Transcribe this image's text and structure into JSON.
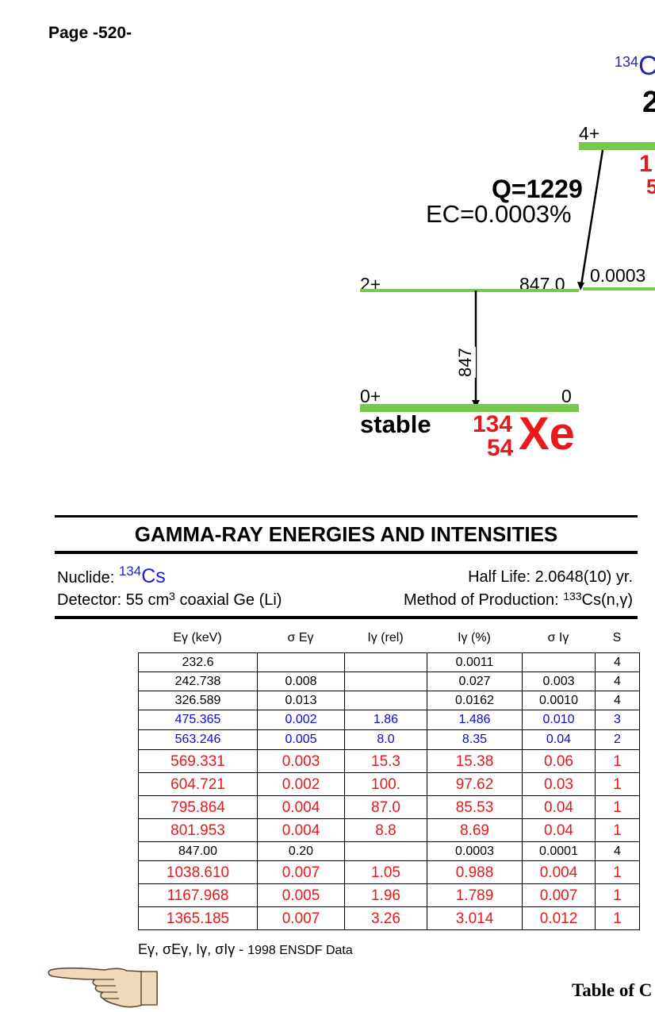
{
  "page_number": "Page -520-",
  "scheme": {
    "parent_label_mass": "134",
    "parent_label_elem": "C",
    "parent_fragment": "2",
    "parent_spin": "4+",
    "parent_red_fragment_1": "1",
    "parent_red_fragment_2": "5",
    "q_value": "Q=1229",
    "ec_branch": "EC=0.0003%",
    "feed_intensity": "0.0003",
    "level_2_spin": "2+",
    "level_2_energy": "847.0",
    "gamma_label": "847",
    "ground_spin": "0+",
    "ground_energy": "0",
    "ground_status": "stable",
    "daughter_mass": "134",
    "daughter_z": "54",
    "daughter_symbol": "Xe"
  },
  "section_title": "GAMMA-RAY ENERGIES AND INTENSITIES",
  "info": {
    "nuclide_label": "Nuclide: ",
    "nuclide_mass": "134",
    "nuclide_symbol": "Cs",
    "half_life": "Half Life: 2.0648(10) yr.",
    "detector_pre": "Detector: 55 cm",
    "detector_sup": "3",
    "detector_post": " coaxial Ge (Li)",
    "method_pre": "Method of Production: ",
    "method_sup": "133",
    "method_post": "Cs(n,γ)"
  },
  "table": {
    "headers": [
      "Eγ (keV)",
      "σ Eγ",
      "Iγ (rel)",
      "Iγ (%)",
      "σ Iγ",
      "S"
    ],
    "rows": [
      {
        "e": "232.6",
        "se": "",
        "irel": "",
        "ipct": "0.0011",
        "si": "",
        "s": "4"
      },
      {
        "e": "242.738",
        "se": "0.008",
        "irel": "",
        "ipct": "0.027",
        "si": "0.003",
        "s": "4"
      },
      {
        "e": "326.589",
        "se": "0.013",
        "irel": "",
        "ipct": "0.0162",
        "si": "0.0010",
        "s": "4"
      },
      {
        "e": "475.365",
        "se": "0.002",
        "irel": "1.86",
        "ipct": "1.486",
        "si": "0.010",
        "s": "3"
      },
      {
        "e": "563.246",
        "se": "0.005",
        "irel": "8.0",
        "ipct": "8.35",
        "si": "0.04",
        "s": "2"
      },
      {
        "e": "569.331",
        "se": "0.003",
        "irel": "15.3",
        "ipct": "15.38",
        "si": "0.06",
        "s": "1"
      },
      {
        "e": "604.721",
        "se": "0.002",
        "irel": "100.",
        "ipct": "97.62",
        "si": "0.03",
        "s": "1"
      },
      {
        "e": "795.864",
        "se": "0.004",
        "irel": "87.0",
        "ipct": "85.53",
        "si": "0.04",
        "s": "1"
      },
      {
        "e": "801.953",
        "se": "0.004",
        "irel": "8.8",
        "ipct": "8.69",
        "si": "0.04",
        "s": "1"
      },
      {
        "e": "847.00",
        "se": "0.20",
        "irel": "",
        "ipct": "0.0003",
        "si": "0.0001",
        "s": "4"
      },
      {
        "e": "1038.610",
        "se": "0.007",
        "irel": "1.05",
        "ipct": "0.988",
        "si": "0.004",
        "s": "1"
      },
      {
        "e": "1167.968",
        "se": "0.005",
        "irel": "1.96",
        "ipct": "1.789",
        "si": "0.007",
        "s": "1"
      },
      {
        "e": "1365.185",
        "se": "0.007",
        "irel": "3.26",
        "ipct": "3.014",
        "si": "0.012",
        "s": "1"
      }
    ]
  },
  "footnote_symbols": "Eγ, σEγ, Iγ, σIγ - ",
  "footnote_source": "1998 ENSDF Data",
  "toc_link": "Table of C",
  "colors": {
    "level": "#77c94b",
    "red": "#e8181c",
    "blue": "#0a0ad8",
    "nuclide_blue": "#1a1ae0"
  },
  "icons": {
    "pointer": "pointing-hand-icon"
  }
}
